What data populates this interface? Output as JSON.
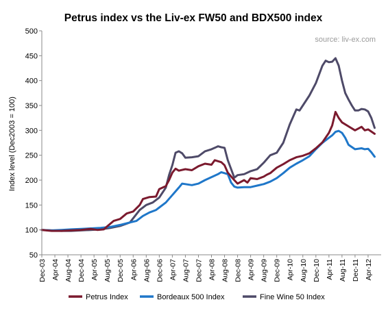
{
  "chart_data": {
    "type": "line",
    "title": "Petrus index vs the Liv-ex FW50 and BDX500 index",
    "annotation": "source: liv-ex.com",
    "xlabel": "",
    "ylabel": "Index level (Dec2003 = 100)",
    "ylim": [
      50,
      500
    ],
    "yticks": [
      50,
      100,
      150,
      200,
      250,
      300,
      350,
      400,
      450,
      500
    ],
    "grid": false,
    "legend_position": "bottom",
    "x_tick_labels": [
      "Dec-03",
      "Apr-04",
      "Aug-04",
      "Dec-04",
      "Apr-05",
      "Aug-05",
      "Dec-05",
      "Apr-06",
      "Aug-06",
      "Dec-06",
      "Apr-07",
      "Aug-07",
      "Dec-07",
      "Apr-08",
      "Aug-08",
      "Dec-08",
      "Apr-09",
      "Aug-09",
      "Dec-09",
      "Apr-10",
      "Aug-10",
      "Dec-10",
      "Apr-11",
      "Aug-11",
      "Dec-11",
      "Apr-12"
    ],
    "series": [
      {
        "name": "Petrus Index",
        "color": "#7b1a2e",
        "points": [
          [
            "Dec-03",
            100
          ],
          [
            "Mar-04",
            98
          ],
          [
            "Jun-04",
            98
          ],
          [
            "Sep-04",
            99
          ],
          [
            "Dec-04",
            100
          ],
          [
            "Mar-05",
            102
          ],
          [
            "May-05",
            100
          ],
          [
            "Jul-05",
            101
          ],
          [
            "Aug-05",
            107
          ],
          [
            "Oct-05",
            118
          ],
          [
            "Dec-05",
            122
          ],
          [
            "Feb-06",
            133
          ],
          [
            "Apr-06",
            137
          ],
          [
            "Jun-06",
            150
          ],
          [
            "Jul-06",
            162
          ],
          [
            "Sep-06",
            166
          ],
          [
            "Nov-06",
            167
          ],
          [
            "Dec-06",
            182
          ],
          [
            "Feb-07",
            188
          ],
          [
            "Mar-07",
            200
          ],
          [
            "Apr-07",
            215
          ],
          [
            "May-07",
            223
          ],
          [
            "Jun-07",
            219
          ],
          [
            "Aug-07",
            222
          ],
          [
            "Oct-07",
            220
          ],
          [
            "Dec-07",
            228
          ],
          [
            "Feb-08",
            233
          ],
          [
            "Apr-08",
            231
          ],
          [
            "May-08",
            240
          ],
          [
            "Jul-08",
            236
          ],
          [
            "Aug-08",
            230
          ],
          [
            "Sep-08",
            215
          ],
          [
            "Nov-08",
            200
          ],
          [
            "Dec-08",
            193
          ],
          [
            "Feb-09",
            200
          ],
          [
            "Mar-09",
            195
          ],
          [
            "Apr-09",
            204
          ],
          [
            "Jun-09",
            202
          ],
          [
            "Aug-09",
            207
          ],
          [
            "Sep-09",
            211
          ],
          [
            "Oct-09",
            214
          ],
          [
            "Dec-09",
            225
          ],
          [
            "Feb-10",
            232
          ],
          [
            "Apr-10",
            240
          ],
          [
            "Jun-10",
            246
          ],
          [
            "Aug-10",
            249
          ],
          [
            "Oct-10",
            254
          ],
          [
            "Dec-10",
            264
          ],
          [
            "Feb-11",
            276
          ],
          [
            "Apr-11",
            295
          ],
          [
            "May-11",
            310
          ],
          [
            "Jun-11",
            337
          ],
          [
            "Jul-11",
            325
          ],
          [
            "Aug-11",
            316
          ],
          [
            "Oct-11",
            308
          ],
          [
            "Dec-11",
            300
          ],
          [
            "Feb-12",
            307
          ],
          [
            "Mar-12",
            300
          ],
          [
            "Apr-12",
            302
          ],
          [
            "Jun-12",
            293
          ]
        ]
      },
      {
        "name": "Bordeaux 500 Index",
        "color": "#1f77c9",
        "points": [
          [
            "Dec-03",
            100
          ],
          [
            "Mar-04",
            99
          ],
          [
            "Jun-04",
            100
          ],
          [
            "Sep-04",
            101
          ],
          [
            "Dec-04",
            102
          ],
          [
            "Mar-05",
            103
          ],
          [
            "Jun-05",
            104
          ],
          [
            "Sep-05",
            106
          ],
          [
            "Dec-05",
            110
          ],
          [
            "Mar-06",
            115
          ],
          [
            "May-06",
            118
          ],
          [
            "Jul-06",
            128
          ],
          [
            "Sep-06",
            135
          ],
          [
            "Nov-06",
            140
          ],
          [
            "Dec-06",
            145
          ],
          [
            "Feb-07",
            155
          ],
          [
            "Apr-07",
            170
          ],
          [
            "Jun-07",
            185
          ],
          [
            "Jul-07",
            193
          ],
          [
            "Aug-07",
            192
          ],
          [
            "Oct-07",
            190
          ],
          [
            "Dec-07",
            193
          ],
          [
            "Feb-08",
            200
          ],
          [
            "Apr-08",
            206
          ],
          [
            "Jun-08",
            212
          ],
          [
            "Jul-08",
            216
          ],
          [
            "Aug-08",
            214
          ],
          [
            "Sep-08",
            212
          ],
          [
            "Oct-08",
            195
          ],
          [
            "Nov-08",
            187
          ],
          [
            "Dec-08",
            185
          ],
          [
            "Feb-09",
            186
          ],
          [
            "Apr-09",
            186
          ],
          [
            "Jun-09",
            189
          ],
          [
            "Aug-09",
            192
          ],
          [
            "Oct-09",
            197
          ],
          [
            "Dec-09",
            204
          ],
          [
            "Feb-10",
            214
          ],
          [
            "Apr-10",
            225
          ],
          [
            "Jun-10",
            233
          ],
          [
            "Aug-10",
            240
          ],
          [
            "Oct-10",
            248
          ],
          [
            "Dec-10",
            262
          ],
          [
            "Feb-11",
            275
          ],
          [
            "Apr-11",
            285
          ],
          [
            "May-11",
            290
          ],
          [
            "Jun-11",
            297
          ],
          [
            "Jul-11",
            299
          ],
          [
            "Aug-11",
            295
          ],
          [
            "Sep-11",
            285
          ],
          [
            "Oct-11",
            271
          ],
          [
            "Dec-11",
            262
          ],
          [
            "Feb-12",
            264
          ],
          [
            "Mar-12",
            262
          ],
          [
            "Apr-12",
            263
          ],
          [
            "May-12",
            256
          ],
          [
            "Jun-12",
            247
          ]
        ]
      },
      {
        "name": "Fine Wine 50 Index",
        "color": "#4e4a68",
        "points": [
          [
            "Dec-03",
            100
          ],
          [
            "Mar-04",
            99
          ],
          [
            "Jun-04",
            98
          ],
          [
            "Sep-04",
            98
          ],
          [
            "Dec-04",
            99
          ],
          [
            "Mar-05",
            100
          ],
          [
            "Jun-05",
            101
          ],
          [
            "Sep-05",
            104
          ],
          [
            "Dec-05",
            108
          ],
          [
            "Mar-06",
            115
          ],
          [
            "Jun-06",
            140
          ],
          [
            "Aug-06",
            150
          ],
          [
            "Oct-06",
            155
          ],
          [
            "Dec-06",
            165
          ],
          [
            "Feb-07",
            185
          ],
          [
            "Mar-07",
            210
          ],
          [
            "Apr-07",
            230
          ],
          [
            "May-07",
            255
          ],
          [
            "Jun-07",
            258
          ],
          [
            "Jul-07",
            254
          ],
          [
            "Aug-07",
            245
          ],
          [
            "Oct-07",
            246
          ],
          [
            "Dec-07",
            248
          ],
          [
            "Feb-08",
            258
          ],
          [
            "Apr-08",
            262
          ],
          [
            "May-08",
            265
          ],
          [
            "Jun-08",
            268
          ],
          [
            "Jul-08",
            266
          ],
          [
            "Aug-08",
            265
          ],
          [
            "Sep-08",
            240
          ],
          [
            "Nov-08",
            205
          ],
          [
            "Dec-08",
            210
          ],
          [
            "Feb-09",
            212
          ],
          [
            "Apr-09",
            218
          ],
          [
            "Jun-09",
            222
          ],
          [
            "Aug-09",
            235
          ],
          [
            "Oct-09",
            250
          ],
          [
            "Dec-09",
            255
          ],
          [
            "Feb-10",
            275
          ],
          [
            "Apr-10",
            312
          ],
          [
            "Jun-10",
            342
          ],
          [
            "Jul-10",
            340
          ],
          [
            "Aug-10",
            350
          ],
          [
            "Oct-10",
            370
          ],
          [
            "Dec-10",
            395
          ],
          [
            "Feb-11",
            430
          ],
          [
            "Mar-11",
            440
          ],
          [
            "Apr-11",
            437
          ],
          [
            "May-11",
            438
          ],
          [
            "Jun-11",
            445
          ],
          [
            "Jul-11",
            430
          ],
          [
            "Aug-11",
            400
          ],
          [
            "Sep-11",
            375
          ],
          [
            "Oct-11",
            362
          ],
          [
            "Nov-11",
            350
          ],
          [
            "Dec-11",
            340
          ],
          [
            "Jan-12",
            340
          ],
          [
            "Feb-12",
            343
          ],
          [
            "Mar-12",
            342
          ],
          [
            "Apr-12",
            338
          ],
          [
            "May-12",
            325
          ],
          [
            "Jun-12",
            305
          ]
        ]
      }
    ]
  }
}
